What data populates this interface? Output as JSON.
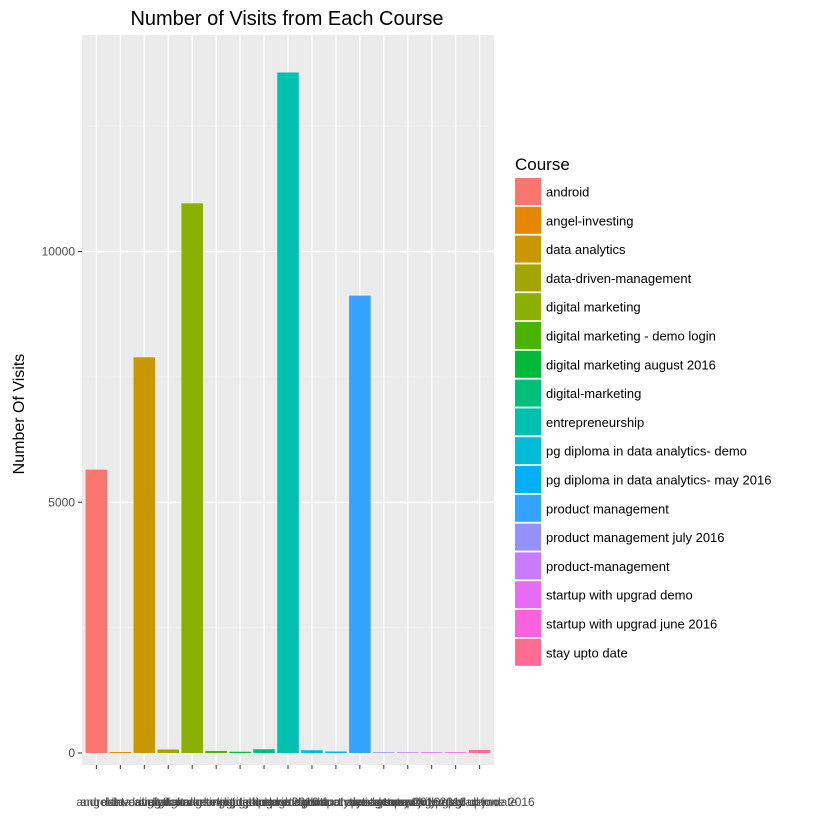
{
  "chart_data": {
    "type": "bar",
    "title": "Number of Visits from Each Course",
    "xlabel": "",
    "ylabel": "Number Of Visits",
    "ylim": [
      0,
      13600
    ],
    "yticks": [
      0,
      5000,
      10000
    ],
    "grid": true,
    "legend": {
      "title": "Course",
      "position": "right"
    },
    "categories": [
      "android",
      "angel-investing",
      "data analytics",
      "data-driven-management",
      "digital marketing",
      "digital marketing - demo login",
      "digital marketing august 2016",
      "digital-marketing",
      "entrepreneurship",
      "pg diploma in data analytics- demo",
      "pg diploma in data analytics- may 2016",
      "product management",
      "product management july 2016",
      "product-management",
      "startup with upgrad demo",
      "startup with upgrad june 2016",
      "stay upto date"
    ],
    "values": [
      5650,
      20,
      7890,
      70,
      10960,
      40,
      25,
      75,
      13570,
      55,
      30,
      9120,
      10,
      10,
      10,
      10,
      60
    ],
    "colors": [
      "#F8766D",
      "#E58700",
      "#C99800",
      "#A3A500",
      "#8DB000",
      "#4BB400",
      "#00BA38",
      "#00BF7D",
      "#00C0AF",
      "#00BCD8",
      "#00B0F6",
      "#35A2FF",
      "#9590FF",
      "#C77CFF",
      "#E76BF3",
      "#FA62DB",
      "#FF6C91"
    ]
  }
}
